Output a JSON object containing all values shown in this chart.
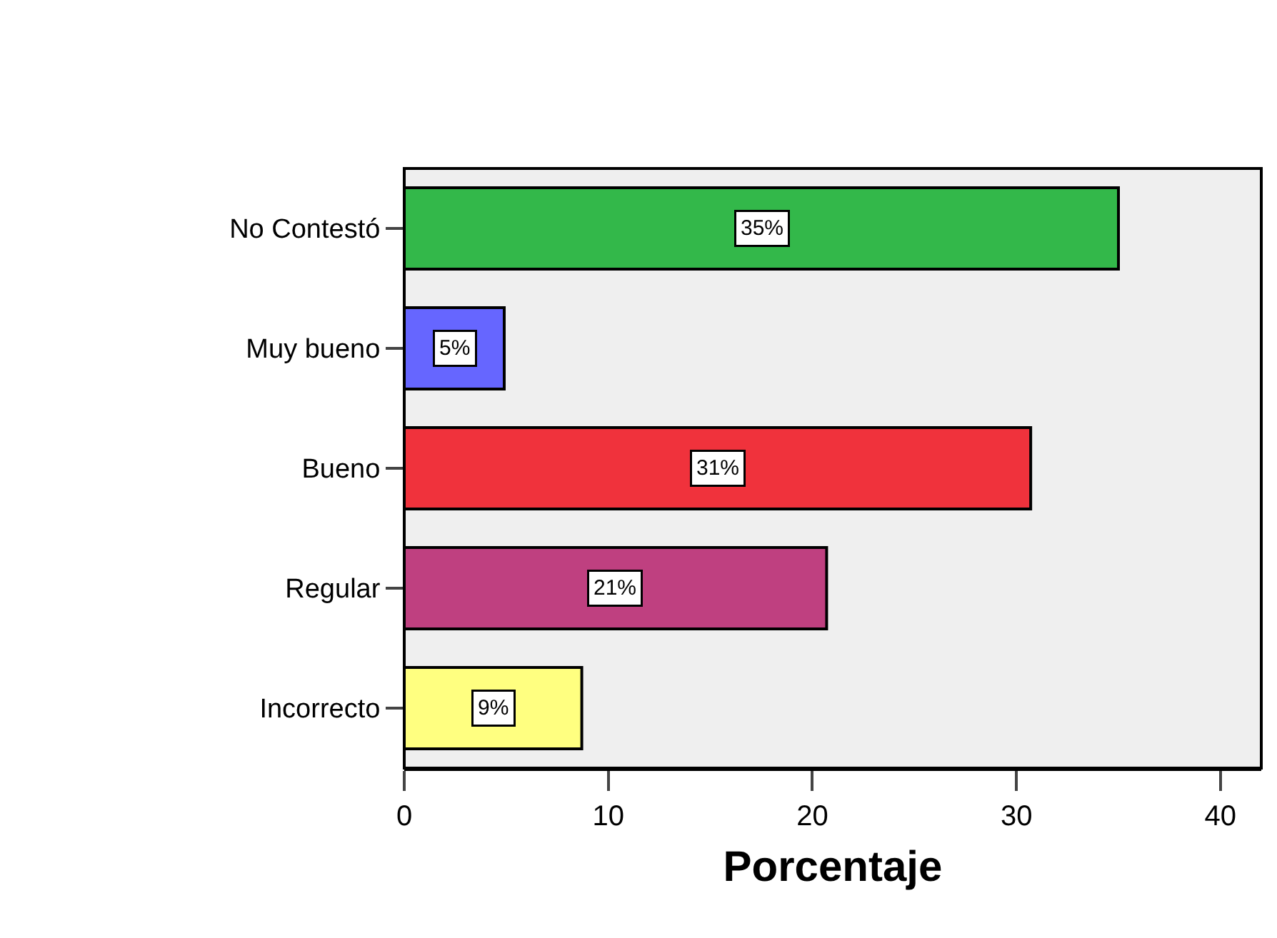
{
  "chart_data": {
    "type": "bar",
    "orientation": "horizontal",
    "xlabel": "Porcentaje",
    "categories": [
      "No Contestó",
      "Muy bueno",
      "Bueno",
      "Regular",
      "Incorrecto"
    ],
    "values": [
      35.0,
      4.9,
      30.7,
      20.7,
      8.7
    ],
    "colors": [
      "#33b84a",
      "#6666ff",
      "#f0323c",
      "#bf4080",
      "#ffff80"
    ],
    "value_labels": [
      "35%",
      "5%",
      "31%",
      "21%",
      "9%"
    ],
    "xlim": [
      0,
      42
    ],
    "xticks": [
      0,
      10,
      20,
      30,
      40
    ],
    "grid": false,
    "legend": false
  }
}
